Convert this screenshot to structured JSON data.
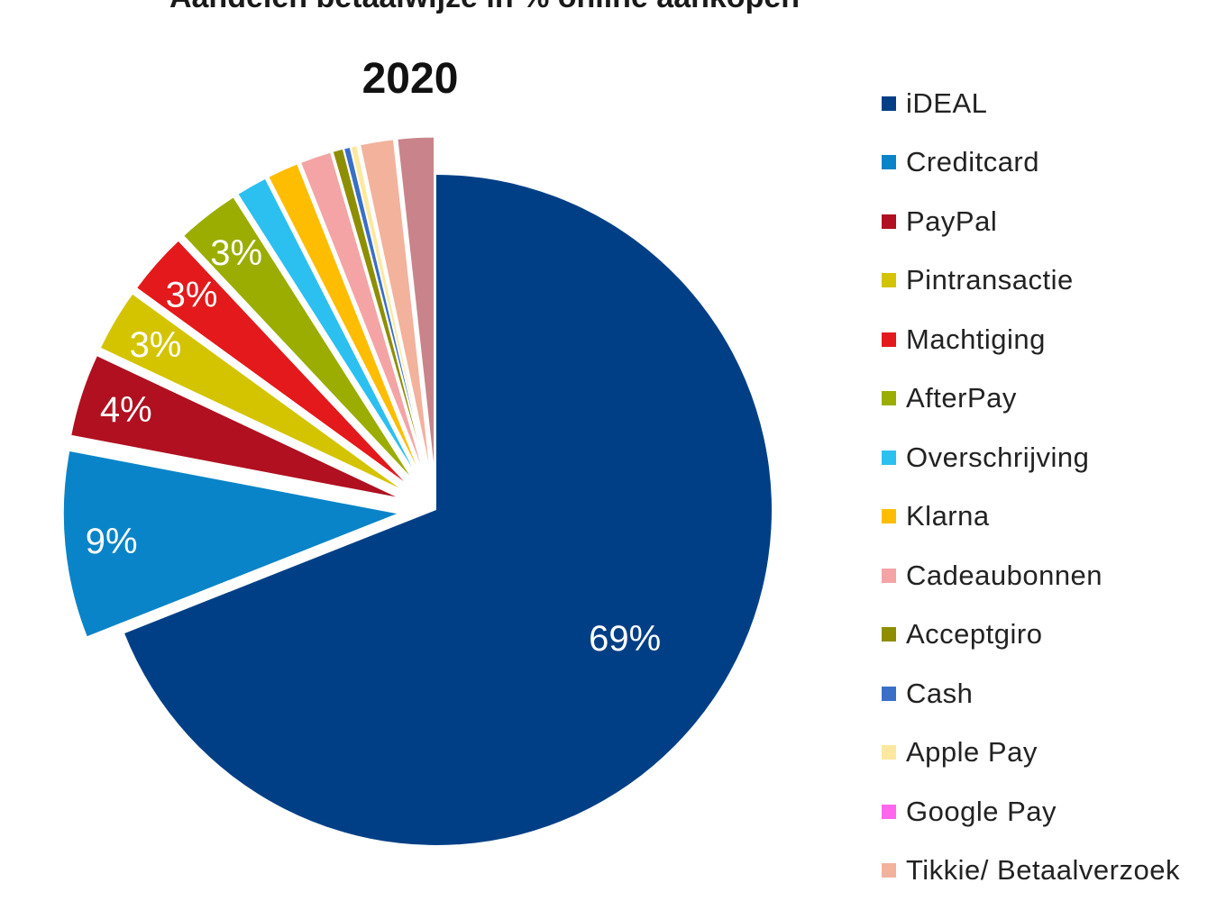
{
  "chart_data": {
    "type": "pie",
    "title": "Aandelen betaalwijze in % online aankopen",
    "subtitle": "2020",
    "legend_position": "right",
    "slices": [
      {
        "name": "iDEAL",
        "value": 69,
        "label": "69%",
        "color": "#003f85"
      },
      {
        "name": "Creditcard",
        "value": 9,
        "label": "9%",
        "color": "#0a84c8"
      },
      {
        "name": "PayPal",
        "value": 4,
        "label": "4%",
        "color": "#b01020"
      },
      {
        "name": "Pintransactie",
        "value": 3,
        "label": "3%",
        "color": "#d4c400"
      },
      {
        "name": "Machtiging",
        "value": 3,
        "label": "3%",
        "color": "#e3191b"
      },
      {
        "name": "AfterPay",
        "value": 3,
        "label": "3%",
        "color": "#9aad00"
      },
      {
        "name": "Overschrijving",
        "value": 1.5,
        "label": "",
        "color": "#2cc0f0"
      },
      {
        "name": "Klarna",
        "value": 1.5,
        "label": "",
        "color": "#ffbd00"
      },
      {
        "name": "Cadeaubonnen",
        "value": 1.5,
        "label": "",
        "color": "#f4a4a4"
      },
      {
        "name": "Acceptgiro",
        "value": 0.5,
        "label": "",
        "color": "#8e8e00"
      },
      {
        "name": "Cash",
        "value": 0.3,
        "label": "",
        "color": "#3a6fc8"
      },
      {
        "name": "Apple Pay",
        "value": 0.3,
        "label": "",
        "color": "#fde8a0"
      },
      {
        "name": "Google Pay",
        "value": 0.05,
        "label": "",
        "color": "#ff66ee"
      },
      {
        "name": "Tikkie/ Betaalverzoek",
        "value": 1.6,
        "label": "",
        "color": "#f2b29c"
      },
      {
        "name": "",
        "value": 1.75,
        "label": "",
        "color": "#c8848a"
      }
    ]
  }
}
